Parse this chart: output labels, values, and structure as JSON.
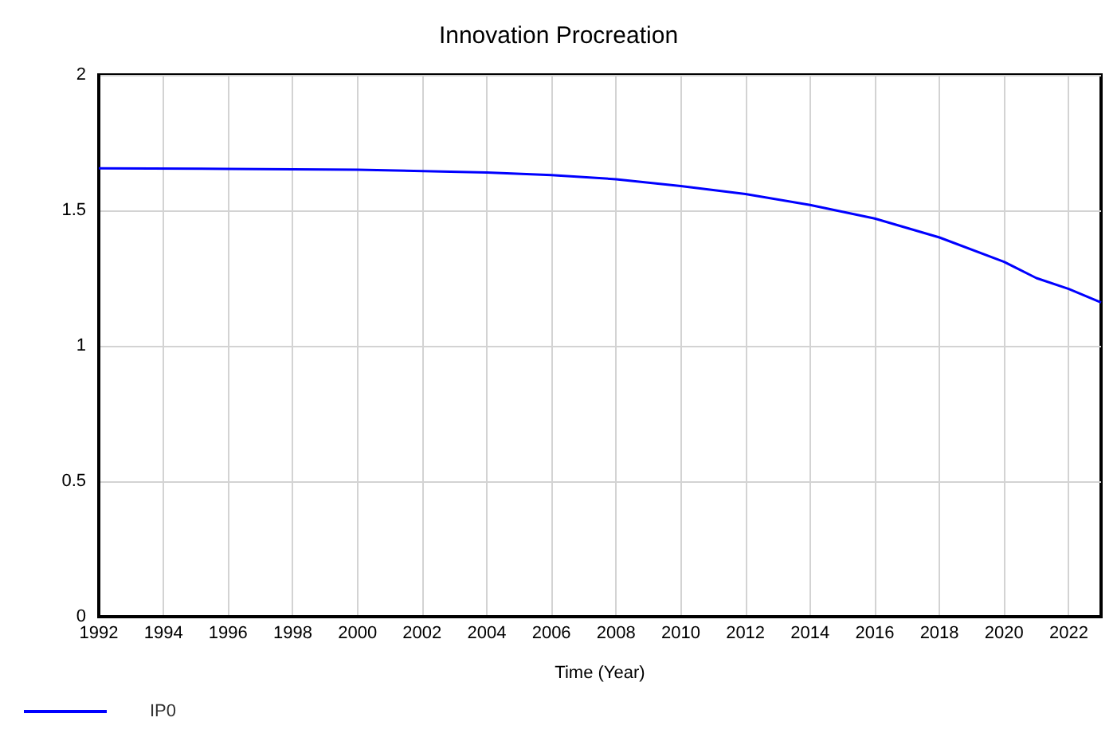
{
  "chart_data": {
    "type": "line",
    "title": "Innovation Procreation",
    "xlabel": "Time (Year)",
    "x": [
      1992,
      1996,
      2000,
      2004,
      2006,
      2008,
      2010,
      2012,
      2014,
      2016,
      2018,
      2020,
      2021,
      2022,
      2023
    ],
    "series": [
      {
        "name": "IP0",
        "color": "#0000ff",
        "values": [
          1.655,
          1.653,
          1.65,
          1.64,
          1.63,
          1.615,
          1.59,
          1.56,
          1.52,
          1.47,
          1.4,
          1.31,
          1.25,
          1.21,
          1.16
        ]
      }
    ],
    "xlim": [
      1992,
      2023
    ],
    "xticks": [
      1992,
      1994,
      1996,
      1998,
      2000,
      2002,
      2004,
      2006,
      2008,
      2010,
      2012,
      2014,
      2016,
      2018,
      2020,
      2022
    ],
    "ylim": [
      0,
      2
    ],
    "yticks": [
      0,
      0.5,
      1,
      1.5,
      2
    ],
    "grid": true,
    "legend": "bottom left",
    "marker": "none",
    "line_style": "solid"
  }
}
